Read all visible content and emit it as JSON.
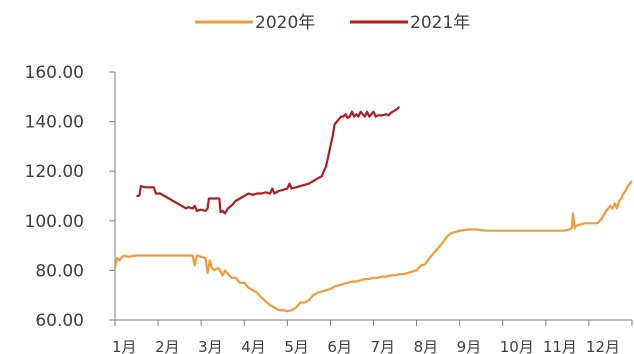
{
  "chart_data": {
    "type": "line",
    "xlabel": "",
    "ylabel": "",
    "ylim": [
      60,
      160
    ],
    "y_ticks": [
      "60.00",
      "80.00",
      "100.00",
      "120.00",
      "140.00",
      "160.00"
    ],
    "y_tick_values": [
      60,
      80,
      100,
      120,
      140,
      160
    ],
    "x_tick_labels": [
      "1月",
      "2月",
      "3月",
      "4月",
      "5月",
      "6月",
      "7月",
      "8月",
      "9月",
      "10月",
      "11月",
      "12月"
    ],
    "xlim": [
      1,
      13
    ],
    "grid": false,
    "legend_position": "top",
    "series": [
      {
        "name": "2020年",
        "color": "#F39A3A",
        "points": [
          [
            1.0,
            81
          ],
          [
            1.05,
            85
          ],
          [
            1.1,
            84
          ],
          [
            1.2,
            86
          ],
          [
            1.3,
            85.5
          ],
          [
            1.5,
            86
          ],
          [
            1.7,
            86
          ],
          [
            2.0,
            86
          ],
          [
            2.2,
            86
          ],
          [
            2.4,
            86
          ],
          [
            2.6,
            86
          ],
          [
            2.8,
            86
          ],
          [
            2.85,
            82
          ],
          [
            2.9,
            86
          ],
          [
            3.0,
            85.5
          ],
          [
            3.1,
            85
          ],
          [
            3.15,
            79
          ],
          [
            3.2,
            84
          ],
          [
            3.25,
            81
          ],
          [
            3.3,
            80
          ],
          [
            3.4,
            81
          ],
          [
            3.5,
            78
          ],
          [
            3.55,
            80
          ],
          [
            3.7,
            77
          ],
          [
            3.8,
            77
          ],
          [
            3.9,
            75
          ],
          [
            4.0,
            75
          ],
          [
            4.1,
            73
          ],
          [
            4.2,
            72
          ],
          [
            4.3,
            71
          ],
          [
            4.4,
            69
          ],
          [
            4.5,
            67.5
          ],
          [
            4.6,
            66
          ],
          [
            4.7,
            65
          ],
          [
            4.8,
            64
          ],
          [
            4.9,
            64
          ],
          [
            5.0,
            63.5
          ],
          [
            5.1,
            64
          ],
          [
            5.2,
            65
          ],
          [
            5.3,
            67
          ],
          [
            5.4,
            67
          ],
          [
            5.5,
            68
          ],
          [
            5.6,
            70
          ],
          [
            5.7,
            71
          ],
          [
            5.8,
            71.5
          ],
          [
            5.9,
            72
          ],
          [
            6.0,
            72.5
          ],
          [
            6.1,
            73.5
          ],
          [
            6.2,
            74
          ],
          [
            6.3,
            74.5
          ],
          [
            6.4,
            75
          ],
          [
            6.5,
            75.5
          ],
          [
            6.6,
            75.5
          ],
          [
            6.7,
            76
          ],
          [
            6.8,
            76.5
          ],
          [
            6.9,
            76.5
          ],
          [
            7.0,
            77
          ],
          [
            7.1,
            77
          ],
          [
            7.2,
            77.5
          ],
          [
            7.3,
            77.5
          ],
          [
            7.4,
            78
          ],
          [
            7.5,
            78
          ],
          [
            7.6,
            78.5
          ],
          [
            7.7,
            78.5
          ],
          [
            7.8,
            79
          ],
          [
            7.9,
            79.5
          ],
          [
            8.0,
            80
          ],
          [
            8.1,
            82
          ],
          [
            8.2,
            82.5
          ],
          [
            8.3,
            85
          ],
          [
            8.4,
            87
          ],
          [
            8.5,
            89
          ],
          [
            8.6,
            91
          ],
          [
            8.7,
            93.5
          ],
          [
            8.8,
            95
          ],
          [
            8.9,
            95.5
          ],
          [
            9.0,
            96
          ],
          [
            9.2,
            96.5
          ],
          [
            9.4,
            96.5
          ],
          [
            9.6,
            96
          ],
          [
            9.8,
            96
          ],
          [
            10.0,
            96
          ],
          [
            10.2,
            96
          ],
          [
            10.4,
            96
          ],
          [
            10.6,
            96
          ],
          [
            10.8,
            96
          ],
          [
            11.0,
            96
          ],
          [
            11.2,
            96
          ],
          [
            11.4,
            96
          ],
          [
            11.55,
            96.5
          ],
          [
            11.6,
            97
          ],
          [
            11.63,
            103
          ],
          [
            11.67,
            97
          ],
          [
            11.7,
            98
          ],
          [
            11.8,
            98.5
          ],
          [
            11.9,
            99
          ],
          [
            12.0,
            99
          ],
          [
            12.1,
            99
          ],
          [
            12.2,
            99
          ],
          [
            12.3,
            101
          ],
          [
            12.4,
            104
          ],
          [
            12.5,
            106
          ],
          [
            12.55,
            105
          ],
          [
            12.6,
            107
          ],
          [
            12.65,
            105
          ],
          [
            12.7,
            108
          ],
          [
            12.75,
            109
          ],
          [
            12.8,
            111
          ],
          [
            12.85,
            112
          ],
          [
            12.9,
            114
          ],
          [
            12.95,
            115
          ],
          [
            13.0,
            116
          ]
        ]
      },
      {
        "name": "2021年",
        "color": "#B01E23",
        "points": [
          [
            1.5,
            110
          ],
          [
            1.55,
            110
          ],
          [
            1.57,
            110.5
          ],
          [
            1.6,
            114
          ],
          [
            1.7,
            113.5
          ],
          [
            1.8,
            113.5
          ],
          [
            1.9,
            113.5
          ],
          [
            1.95,
            111
          ],
          [
            2.05,
            111
          ],
          [
            2.15,
            110
          ],
          [
            2.25,
            109
          ],
          [
            2.35,
            108
          ],
          [
            2.45,
            107
          ],
          [
            2.55,
            106
          ],
          [
            2.65,
            105
          ],
          [
            2.7,
            105.5
          ],
          [
            2.8,
            105
          ],
          [
            2.85,
            106
          ],
          [
            2.9,
            104
          ],
          [
            3.0,
            104.5
          ],
          [
            3.1,
            104
          ],
          [
            3.15,
            105
          ],
          [
            3.18,
            109
          ],
          [
            3.25,
            109
          ],
          [
            3.35,
            109
          ],
          [
            3.42,
            109
          ],
          [
            3.45,
            103.5
          ],
          [
            3.5,
            104
          ],
          [
            3.55,
            103
          ],
          [
            3.62,
            105
          ],
          [
            3.7,
            106
          ],
          [
            3.8,
            108
          ],
          [
            3.9,
            109
          ],
          [
            4.0,
            110
          ],
          [
            4.1,
            111
          ],
          [
            4.2,
            110.5
          ],
          [
            4.3,
            111
          ],
          [
            4.4,
            111
          ],
          [
            4.5,
            111.5
          ],
          [
            4.6,
            111
          ],
          [
            4.65,
            113
          ],
          [
            4.7,
            111
          ],
          [
            4.8,
            112
          ],
          [
            4.9,
            112.5
          ],
          [
            5.0,
            113
          ],
          [
            5.05,
            115
          ],
          [
            5.1,
            113
          ],
          [
            5.2,
            113.5
          ],
          [
            5.3,
            114
          ],
          [
            5.4,
            114.5
          ],
          [
            5.5,
            115
          ],
          [
            5.6,
            116
          ],
          [
            5.7,
            117
          ],
          [
            5.8,
            118
          ],
          [
            5.9,
            122
          ],
          [
            5.95,
            126
          ],
          [
            6.0,
            130
          ],
          [
            6.05,
            134
          ],
          [
            6.1,
            139
          ],
          [
            6.15,
            140
          ],
          [
            6.2,
            141
          ],
          [
            6.25,
            142
          ],
          [
            6.3,
            142
          ],
          [
            6.35,
            143
          ],
          [
            6.4,
            141.5
          ],
          [
            6.45,
            142
          ],
          [
            6.5,
            144
          ],
          [
            6.55,
            142
          ],
          [
            6.6,
            143
          ],
          [
            6.65,
            142
          ],
          [
            6.7,
            144
          ],
          [
            6.75,
            143
          ],
          [
            6.8,
            142
          ],
          [
            6.85,
            144
          ],
          [
            6.9,
            142
          ],
          [
            6.95,
            143
          ],
          [
            7.0,
            144
          ],
          [
            7.05,
            142
          ],
          [
            7.1,
            142.5
          ],
          [
            7.2,
            142.5
          ],
          [
            7.3,
            143
          ],
          [
            7.35,
            142.5
          ],
          [
            7.4,
            143.5
          ],
          [
            7.45,
            144
          ],
          [
            7.5,
            144.5
          ],
          [
            7.55,
            145
          ],
          [
            7.6,
            146
          ]
        ]
      }
    ]
  }
}
